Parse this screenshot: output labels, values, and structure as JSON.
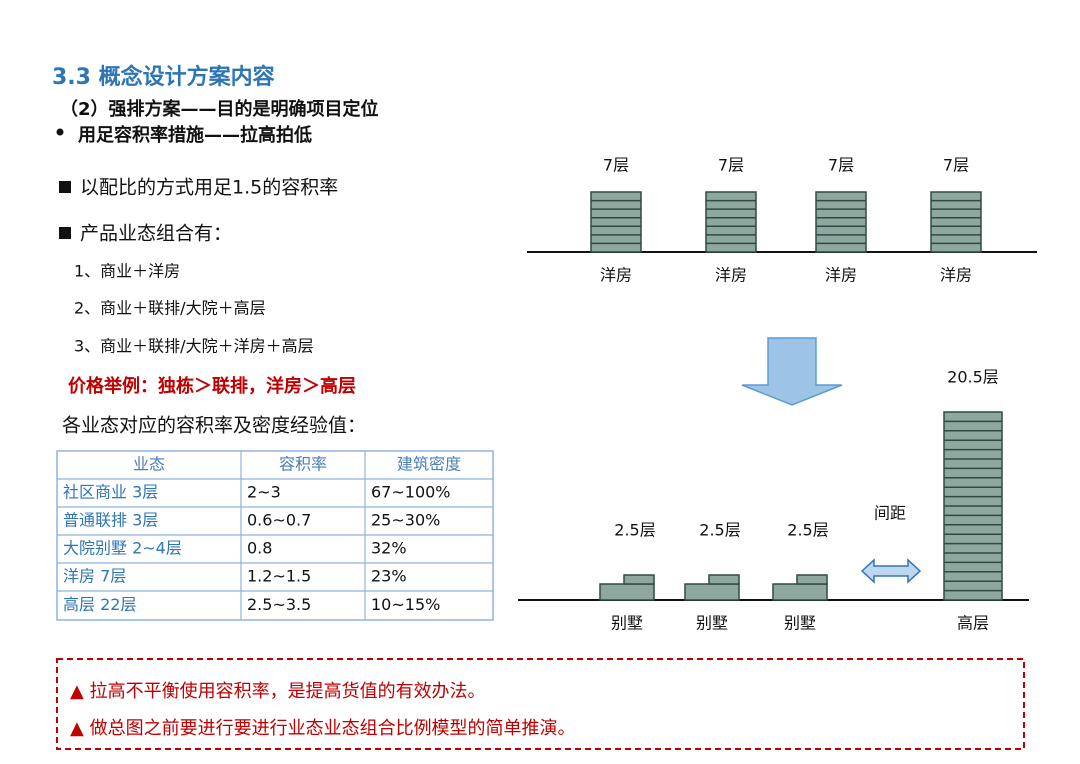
{
  "header": {
    "section": "3.3  概念设计方案内容",
    "subtitle": "（2）强排方案——目的是明确项目定位",
    "bullet": "用足容积率措施——拉高拍低"
  },
  "points": [
    "以配比的方式用足1.5的容积率",
    "产品业态组合有："
  ],
  "combos": [
    "1、商业＋洋房",
    "2、商业＋联排/大院＋高层",
    "3、商业＋联排/大院＋洋房＋高层"
  ],
  "price_example": "价格举例：独栋＞联排，洋房＞高层",
  "table_caption": "各业态对应的容积率及密度经验值：",
  "table": {
    "header": [
      "业态",
      "容积率",
      "建筑密度"
    ],
    "rows": [
      [
        "社区商业  3层",
        "2~3",
        "67~100%"
      ],
      [
        "普通联排  3层",
        "0.6~0.7",
        "25~30%"
      ],
      [
        "大院别墅  2~4层",
        "0.8",
        "32%"
      ],
      [
        "洋房 7层",
        "1.2~1.5",
        "23%"
      ],
      [
        "高层 22层",
        "2.5~3.5",
        "10~15%"
      ]
    ]
  },
  "diagram": {
    "top": [
      {
        "floors": "7层",
        "label": "洋房"
      },
      {
        "floors": "7层",
        "label": "洋房"
      },
      {
        "floors": "7层",
        "label": "洋房"
      },
      {
        "floors": "7层",
        "label": "洋房"
      }
    ],
    "villas": [
      {
        "floors": "2.5层",
        "label": "别墅"
      },
      {
        "floors": "2.5层",
        "label": "别墅"
      },
      {
        "floors": "2.5层",
        "label": "别墅"
      }
    ],
    "spacing": "间距",
    "tower": {
      "floors": "20.5层",
      "label": "高层"
    }
  },
  "notes": [
    "▲ 拉高不平衡使用容积率，是提高货值的有效办法。",
    "▲ 做总图之前要进行要进行业态业态组合比例模型的简单推演。"
  ]
}
